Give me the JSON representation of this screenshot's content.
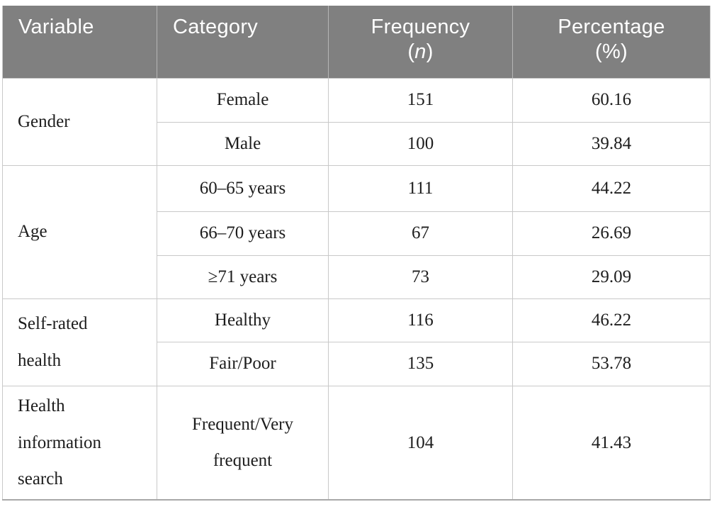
{
  "theme": {
    "page_bg": "#ffffff",
    "header_bg": "#808080",
    "header_text": "#ffffff",
    "body_text": "#1d1d1d",
    "grid_line": "#c9c9c9",
    "section_line": "#b5b5b5",
    "outer_bottom_line": "#a8a8a8"
  },
  "table": {
    "header": {
      "variable": "Variable",
      "category": "Category",
      "frequency_line1": "Frequency",
      "frequency_open": "(",
      "frequency_symbol": "n",
      "frequency_close": ")",
      "percentage_line1": "Percentage",
      "percentage_line2": "(%)"
    },
    "sections": [
      {
        "variable": "Gender",
        "rows": [
          {
            "category": "Female",
            "frequency": "151",
            "percentage": "60.16"
          },
          {
            "category": "Male",
            "frequency": "100",
            "percentage": "39.84"
          }
        ]
      },
      {
        "variable": "Age",
        "rows": [
          {
            "category": "60–65 years",
            "frequency": "111",
            "percentage": "44.22"
          },
          {
            "category": "66–70 years",
            "frequency": "67",
            "percentage": "26.69"
          },
          {
            "category": "≥71 years",
            "frequency": "73",
            "percentage": "29.09"
          }
        ]
      },
      {
        "variable": "Self-rated health",
        "rows": [
          {
            "category": "Healthy",
            "frequency": "116",
            "percentage": "46.22"
          },
          {
            "category": "Fair/Poor",
            "frequency": "135",
            "percentage": "53.78"
          }
        ]
      },
      {
        "variable": "Health information search",
        "rows": [
          {
            "category": "Frequent/Very frequent",
            "frequency": "104",
            "percentage": "41.43"
          }
        ]
      }
    ]
  },
  "chart_data": {
    "type": "table",
    "columns": [
      "Variable",
      "Category",
      "Frequency (n)",
      "Percentage (%)"
    ],
    "rows": [
      [
        "Gender",
        "Female",
        151,
        60.16
      ],
      [
        "Gender",
        "Male",
        100,
        39.84
      ],
      [
        "Age",
        "60–65 years",
        111,
        44.22
      ],
      [
        "Age",
        "66–70 years",
        67,
        26.69
      ],
      [
        "Age",
        "≥71 years",
        73,
        29.09
      ],
      [
        "Self-rated health",
        "Healthy",
        116,
        46.22
      ],
      [
        "Self-rated health",
        "Fair/Poor",
        135,
        53.78
      ],
      [
        "Health information search",
        "Frequent/Very frequent",
        104,
        41.43
      ]
    ]
  }
}
